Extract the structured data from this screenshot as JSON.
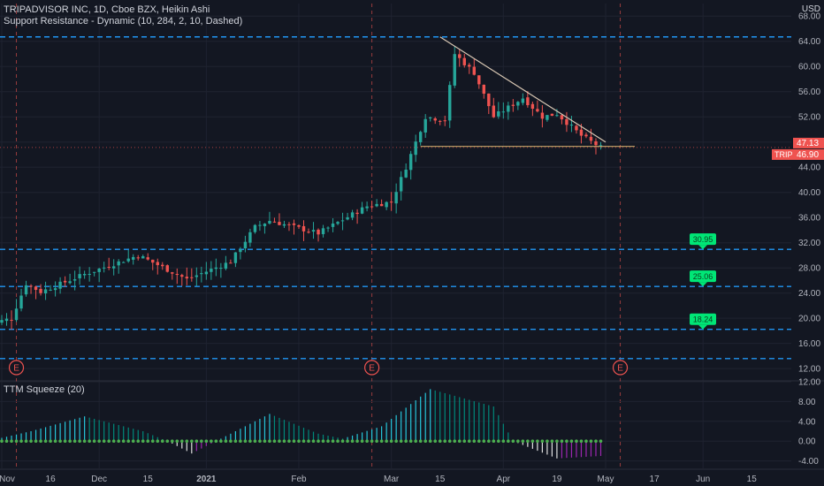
{
  "header": {
    "line1": "TRIPADVISOR INC, 1D, Cboe BZX, Heikin Ashi",
    "line2": "Support Resistance - Dynamic (10, 284, 2, 10, Dashed)",
    "currency": "USD"
  },
  "squeeze_label": "TTM Squeeze (20)",
  "chart_data": [
    {
      "type": "candlestick",
      "title": "TRIPADVISOR INC, 1D, Cboe BZX, Heikin Ashi",
      "ylim": [
        10.2,
        70.0
      ],
      "yticks": [
        "68.00",
        "64.00",
        "60.00",
        "56.00",
        "52.00",
        "48.00",
        "44.00",
        "40.00",
        "36.00",
        "32.00",
        "28.00",
        "24.00",
        "20.00",
        "16.00",
        "12.00"
      ],
      "xticks": [
        "Nov",
        "16",
        "Dec",
        "15",
        "2021",
        "Feb",
        "Mar",
        "15",
        "Apr",
        "19",
        "May",
        "17",
        "Jun",
        "15"
      ],
      "anchors": [
        {
          "label": "Nov",
          "val": "2020-11-02"
        },
        {
          "label": "Dec",
          "val": "2020-12-01"
        },
        {
          "label": "2021",
          "val": "2021-01-04"
        },
        {
          "label": "Feb",
          "val": "2021-02-01"
        },
        {
          "label": "Mar",
          "val": "2021-03-01"
        },
        {
          "label": "Apr",
          "val": "2021-04-01"
        },
        {
          "label": "May",
          "val": "2021-05-03"
        },
        {
          "label": "Jun",
          "val": "2021-06-01"
        }
      ],
      "keypoints": [
        {
          "date": "2020-10-28",
          "close": 19.0
        },
        {
          "date": "2020-11-04",
          "close": 20.0
        },
        {
          "date": "2020-11-09",
          "close": 25.5
        },
        {
          "date": "2020-11-12",
          "close": 24.2
        },
        {
          "date": "2020-11-25",
          "close": 27.0
        },
        {
          "date": "2020-12-11",
          "close": 30.0
        },
        {
          "date": "2020-12-28",
          "close": 26.2
        },
        {
          "date": "2021-01-11",
          "close": 29.0
        },
        {
          "date": "2021-01-19",
          "close": 34.5
        },
        {
          "date": "2021-01-22",
          "close": 35.5
        },
        {
          "date": "2021-02-05",
          "close": 33.5
        },
        {
          "date": "2021-02-22",
          "close": 37.8
        },
        {
          "date": "2021-03-01",
          "close": 38.5
        },
        {
          "date": "2021-03-04",
          "close": 44.0
        },
        {
          "date": "2021-03-10",
          "close": 52.0
        },
        {
          "date": "2021-03-16",
          "close": 51.5
        },
        {
          "date": "2021-03-18",
          "close": 62.0
        },
        {
          "date": "2021-03-24",
          "close": 59.0
        },
        {
          "date": "2021-03-30",
          "close": 52.0
        },
        {
          "date": "2021-04-08",
          "close": 55.0
        },
        {
          "date": "2021-04-14",
          "close": 52.0
        },
        {
          "date": "2021-04-19",
          "close": 52.5
        },
        {
          "date": "2021-04-26",
          "close": 49.0
        },
        {
          "date": "2021-04-30",
          "close": 47.13
        }
      ],
      "last_price": "47.13",
      "ticker_label": "TRIP",
      "ticker_price": "46.90",
      "support_levels": [
        {
          "value": 64.7,
          "label": ""
        },
        {
          "value": 30.95,
          "label": "30.95"
        },
        {
          "value": 25.06,
          "label": "25.06"
        },
        {
          "value": 18.24,
          "label": "18.24"
        },
        {
          "value": 13.6,
          "label": ""
        }
      ],
      "trendlines": [
        {
          "from": {
            "date": "2021-03-15",
            "price": 64.7
          },
          "to": {
            "date": "2021-05-03",
            "price": 48.0
          },
          "color": "#d9c8b4"
        },
        {
          "from": {
            "date": "2021-03-09",
            "price": 47.3
          },
          "to": {
            "date": "2021-05-11",
            "price": 47.3
          },
          "color": "#c8a86b"
        }
      ],
      "earnings": [
        {
          "date": "2020-11-05",
          "label": "E"
        },
        {
          "date": "2021-02-23",
          "label": "E"
        },
        {
          "date": "2021-05-06",
          "label": "E"
        }
      ],
      "colors": {
        "up": "#26a69a",
        "down": "#ef5350",
        "level": "#2196f3",
        "label_bg": "#00e676",
        "earnings": "#ef5350"
      }
    },
    {
      "type": "bar",
      "title": "TTM Squeeze (20)",
      "ylim": [
        -5.5,
        12.0
      ],
      "yticks": [
        "12.00",
        "8.00",
        "4.00",
        "0.00",
        "-4.00"
      ],
      "keypoints": [
        {
          "date": "2020-10-28",
          "value": 0.0
        },
        {
          "date": "2020-11-10",
          "value": 2.0
        },
        {
          "date": "2020-11-25",
          "value": 5.0
        },
        {
          "date": "2020-12-14",
          "value": 2.0
        },
        {
          "date": "2020-12-21",
          "value": 0.0
        },
        {
          "date": "2020-12-29",
          "value": -2.5
        },
        {
          "date": "2021-01-06",
          "value": 0.0
        },
        {
          "date": "2021-01-22",
          "value": 5.5
        },
        {
          "date": "2021-02-05",
          "value": 1.5
        },
        {
          "date": "2021-02-12",
          "value": 0.5
        },
        {
          "date": "2021-02-25",
          "value": 3.0
        },
        {
          "date": "2021-03-11",
          "value": 10.5
        },
        {
          "date": "2021-03-30",
          "value": 7.0
        },
        {
          "date": "2021-04-06",
          "value": 0.0
        },
        {
          "date": "2021-04-19",
          "value": -3.5
        },
        {
          "date": "2021-04-30",
          "value": -3.0
        }
      ],
      "colors": {
        "up_strong": "#26c6da",
        "up_weak": "#00897b",
        "down_strong": "#e0e0e0",
        "down_weak": "#9c27b0",
        "dot": "#4caf50"
      }
    }
  ]
}
